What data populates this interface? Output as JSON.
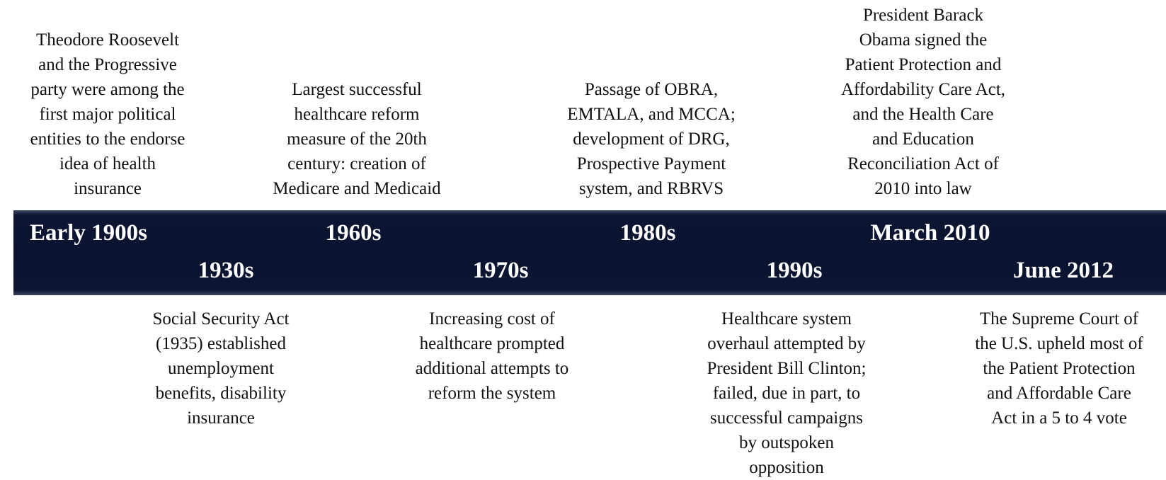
{
  "events": [
    {
      "date": "Early 1900s",
      "description": [
        "Theodore Roosevelt",
        "and the Progressive",
        "party were among the",
        "first major political",
        "entities to the endorse",
        "idea of health",
        "insurance"
      ]
    },
    {
      "date": "1930s",
      "description": [
        "Social Security Act",
        "(1935) established",
        "unemployment",
        "benefits, disability",
        "insurance"
      ]
    },
    {
      "date": "1960s",
      "description": [
        "Largest successful",
        "healthcare reform",
        "measure of the 20th",
        "century: creation of",
        "Medicare and Medicaid"
      ]
    },
    {
      "date": "1970s",
      "description": [
        "Increasing cost of",
        "healthcare prompted",
        "additional attempts to",
        "reform the system"
      ]
    },
    {
      "date": "1980s",
      "description": [
        "Passage of OBRA,",
        "EMTALA, and MCCA;",
        "development of DRG,",
        "Prospective Payment",
        "system, and RBRVS"
      ]
    },
    {
      "date": "1990s",
      "description": [
        "Healthcare system",
        "overhaul attempted by",
        "President Bill Clinton;",
        "failed, due in part, to",
        "successful campaigns",
        "by outspoken",
        "opposition"
      ]
    },
    {
      "date": "March 2010",
      "description": [
        "President Barack",
        "Obama signed the",
        "Patient Protection and",
        "Affordability Care Act,",
        "and the Health Care",
        "and Education",
        "Reconciliation Act of",
        "2010 into law"
      ]
    },
    {
      "date": "June 2012",
      "description": [
        "The Supreme Court of",
        "the U.S. upheld most of",
        "the Patient Protection",
        "and Affordable Care",
        "Act in a 5 to 4 vote"
      ]
    }
  ]
}
